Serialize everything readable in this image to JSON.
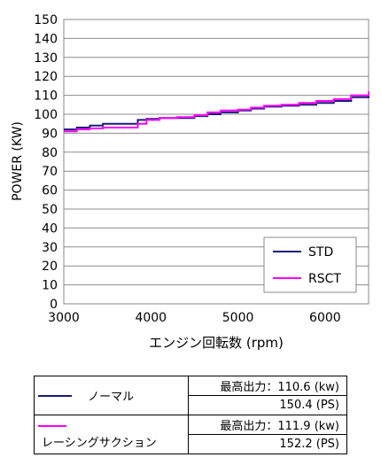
{
  "chart_data": {
    "type": "line",
    "xlabel": "エンジン回転数 (rpm)",
    "ylabel": "POWER (KW)",
    "xlim": [
      3000,
      6500
    ],
    "ylim": [
      0,
      150
    ],
    "x_ticks": [
      "3000",
      "4000",
      "5000",
      "6000"
    ],
    "y_ticks": [
      "0",
      "10",
      "20",
      "30",
      "40",
      "50",
      "60",
      "70",
      "80",
      "90",
      "100",
      "110",
      "120",
      "130",
      "140",
      "150"
    ],
    "grid": "horizontal",
    "legend": "bottom-right",
    "series": [
      {
        "name": "STD",
        "color": "#1a1a7a",
        "x": [
          3000,
          3150,
          3300,
          3450,
          3600,
          3750,
          3850,
          3950,
          4100,
          4300,
          4500,
          4650,
          4800,
          5000,
          5150,
          5300,
          5500,
          5700,
          5900,
          6100,
          6300,
          6500
        ],
        "y": [
          92,
          93,
          94,
          95,
          95,
          95,
          97,
          97.5,
          98,
          98,
          99,
          100,
          101,
          102,
          103,
          104,
          104.5,
          105,
          106,
          107,
          109,
          111
        ]
      },
      {
        "name": "RSCT",
        "color": "#ff00ff",
        "x": [
          3000,
          3150,
          3300,
          3450,
          3600,
          3750,
          3850,
          3950,
          4100,
          4300,
          4500,
          4650,
          4800,
          5000,
          5150,
          5300,
          5500,
          5700,
          5900,
          6100,
          6300,
          6500
        ],
        "y": [
          91,
          92,
          92.5,
          93,
          93,
          93,
          95,
          97,
          98,
          98.5,
          99.5,
          101,
          102,
          102.5,
          103.5,
          104.5,
          105,
          106,
          107,
          108,
          110,
          112
        ]
      }
    ]
  },
  "table": {
    "rows": [
      {
        "name": "ノーマル",
        "color": "#1a1a7a",
        "max_power_kw": "最高出力：110.6 (kw)",
        "max_power_ps": "150.4 (PS)"
      },
      {
        "name": "レーシングサクション",
        "color": "#ff00ff",
        "max_power_kw": "最高出力：111.9 (kw)",
        "max_power_ps": "152.2 (PS)"
      }
    ]
  }
}
